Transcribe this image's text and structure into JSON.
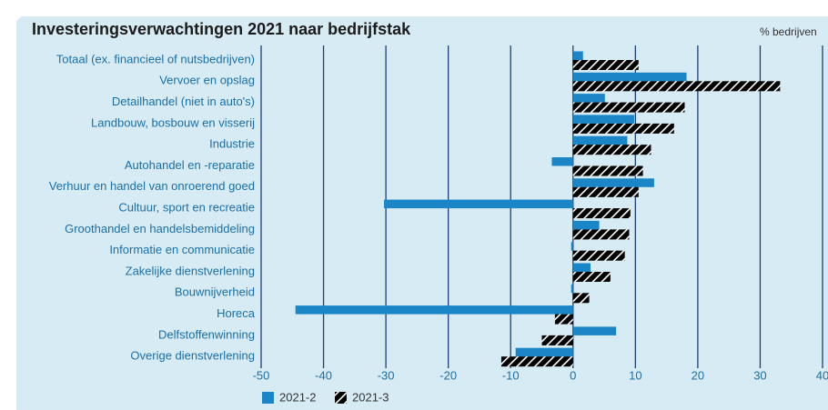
{
  "chart_data": {
    "type": "hbar",
    "title": "Investeringsverwachtingen 2021 naar bedrijfstak",
    "unit_label": "% bedrijven",
    "categories": [
      "Totaal (ex. financieel of nutsbedrijven)",
      "Vervoer en opslag",
      "Detailhandel (niet in auto's)",
      "Landbouw, bosbouw en visserij",
      "Industrie",
      "Autohandel en -reparatie",
      "Verhuur en handel van onroerend goed",
      "Cultuur, sport en recreatie",
      "Groothandel en handelsbemiddeling",
      "Informatie en communicatie",
      "Zakelijke dienstverlening",
      "Bouwnijverheid",
      "Horeca",
      "Delfstoffenwinning",
      "Overige dienstverlening"
    ],
    "series": [
      {
        "name": "2021-2",
        "color": "#1a86c7",
        "hatch": false,
        "values": [
          1.6,
          18.2,
          5.1,
          9.8,
          8.7,
          -3.4,
          13.0,
          -30.3,
          4.2,
          -0.3,
          2.8,
          -0.3,
          -44.5,
          6.9,
          -9.2
        ]
      },
      {
        "name": "2021-3",
        "color": "#e0502a",
        "hatch": true,
        "values": [
          10.5,
          33.2,
          17.9,
          16.2,
          12.5,
          11.2,
          10.5,
          9.2,
          9.0,
          8.3,
          6.0,
          2.6,
          -2.9,
          -5.0,
          -11.5
        ]
      }
    ],
    "xlim": [
      -50,
      40
    ],
    "xticks": [
      -50,
      -40,
      -30,
      -20,
      -10,
      0,
      10,
      20,
      30,
      40
    ],
    "grid": true,
    "legend": "bottom-left"
  }
}
